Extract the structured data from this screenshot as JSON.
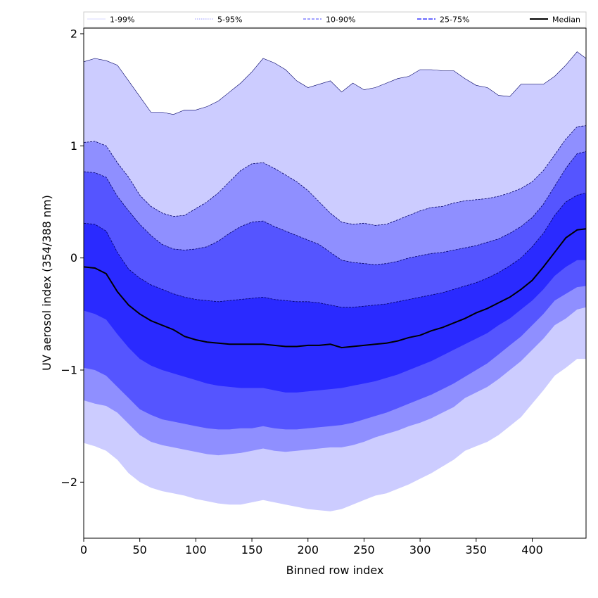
{
  "chart_data": {
    "type": "area",
    "title": "",
    "xlabel": "Binned row index",
    "ylabel": "UV aerosol index (354/388 nm)",
    "xlim": [
      0,
      448
    ],
    "ylim": [
      -2.5,
      2.05
    ],
    "xticks": [
      0,
      50,
      100,
      150,
      200,
      250,
      300,
      350,
      400
    ],
    "xtick_labels": [
      "0",
      "50",
      "100",
      "150",
      "200",
      "250",
      "300",
      "350",
      "400"
    ],
    "yticks": [
      -2,
      -1,
      0,
      1,
      2
    ],
    "ytick_labels": [
      "−2",
      "−1",
      "0",
      "1",
      "2"
    ],
    "grid": false,
    "legend_position": "top",
    "x": [
      0,
      10,
      20,
      30,
      40,
      50,
      60,
      70,
      80,
      90,
      100,
      110,
      120,
      130,
      140,
      150,
      160,
      170,
      180,
      190,
      200,
      210,
      220,
      230,
      240,
      250,
      260,
      270,
      280,
      290,
      300,
      310,
      320,
      330,
      340,
      350,
      360,
      370,
      380,
      390,
      400,
      410,
      420,
      430,
      440,
      448
    ],
    "bands": [
      {
        "name": "1-99%",
        "color": "#ccccff",
        "line_color": "#ccccff",
        "dash": "none",
        "lower": [
          -1.65,
          -1.68,
          -1.72,
          -1.8,
          -1.92,
          -2.0,
          -2.05,
          -2.08,
          -2.1,
          -2.12,
          -2.15,
          -2.17,
          -2.19,
          -2.2,
          -2.2,
          -2.18,
          -2.16,
          -2.18,
          -2.2,
          -2.22,
          -2.24,
          -2.25,
          -2.26,
          -2.24,
          -2.2,
          -2.16,
          -2.12,
          -2.1,
          -2.06,
          -2.02,
          -1.97,
          -1.92,
          -1.86,
          -1.8,
          -1.72,
          -1.68,
          -1.64,
          -1.58,
          -1.5,
          -1.42,
          -1.3,
          -1.18,
          -1.05,
          -0.98,
          -0.9,
          -0.9
        ],
        "upper": [
          1.75,
          1.78,
          1.76,
          1.72,
          1.58,
          1.44,
          1.3,
          1.3,
          1.28,
          1.32,
          1.32,
          1.35,
          1.4,
          1.48,
          1.56,
          1.66,
          1.78,
          1.74,
          1.68,
          1.58,
          1.52,
          1.55,
          1.58,
          1.48,
          1.56,
          1.5,
          1.52,
          1.56,
          1.6,
          1.62,
          1.68,
          1.68,
          1.67,
          1.67,
          1.6,
          1.54,
          1.52,
          1.45,
          1.44,
          1.55,
          1.55,
          1.55,
          1.62,
          1.72,
          1.84,
          1.78
        ]
      },
      {
        "name": "5-95%",
        "color": "#8f8fff",
        "line_color": "#8f8fff",
        "dash": "2,2",
        "lower": [
          -1.27,
          -1.3,
          -1.32,
          -1.38,
          -1.48,
          -1.58,
          -1.64,
          -1.67,
          -1.69,
          -1.71,
          -1.73,
          -1.75,
          -1.76,
          -1.75,
          -1.74,
          -1.72,
          -1.7,
          -1.72,
          -1.73,
          -1.72,
          -1.71,
          -1.7,
          -1.69,
          -1.69,
          -1.67,
          -1.64,
          -1.6,
          -1.57,
          -1.54,
          -1.5,
          -1.47,
          -1.43,
          -1.38,
          -1.33,
          -1.25,
          -1.2,
          -1.15,
          -1.08,
          -1.0,
          -0.92,
          -0.82,
          -0.72,
          -0.6,
          -0.54,
          -0.46,
          -0.44
        ]
      },
      {
        "name": "10-90%",
        "color": "#5555ff",
        "line_color": "#5555ff",
        "dash": "5,3",
        "lower": [
          -0.98,
          -1.0,
          -1.05,
          -1.15,
          -1.25,
          -1.35,
          -1.4,
          -1.44,
          -1.46,
          -1.48,
          -1.5,
          -1.52,
          -1.53,
          -1.53,
          -1.52,
          -1.52,
          -1.5,
          -1.52,
          -1.53,
          -1.53,
          -1.52,
          -1.51,
          -1.5,
          -1.49,
          -1.47,
          -1.44,
          -1.41,
          -1.38,
          -1.34,
          -1.3,
          -1.26,
          -1.22,
          -1.17,
          -1.12,
          -1.06,
          -1.0,
          -0.94,
          -0.86,
          -0.78,
          -0.7,
          -0.6,
          -0.5,
          -0.38,
          -0.32,
          -0.26,
          -0.25
        ]
      },
      {
        "name": "25-75%",
        "color": "#2a2aff",
        "line_color": "#2a2aff",
        "dash": "8,3",
        "lower": [
          -0.47,
          -0.5,
          -0.55,
          -0.68,
          -0.8,
          -0.9,
          -0.96,
          -1.0,
          -1.03,
          -1.06,
          -1.09,
          -1.12,
          -1.14,
          -1.15,
          -1.16,
          -1.16,
          -1.16,
          -1.18,
          -1.2,
          -1.2,
          -1.19,
          -1.18,
          -1.17,
          -1.16,
          -1.14,
          -1.12,
          -1.1,
          -1.07,
          -1.04,
          -1.0,
          -0.96,
          -0.92,
          -0.87,
          -0.82,
          -0.77,
          -0.72,
          -0.67,
          -0.6,
          -0.54,
          -0.46,
          -0.38,
          -0.28,
          -0.16,
          -0.08,
          -0.02,
          -0.02
        ]
      }
    ],
    "band_uppers_dark": [
      {
        "of": "5-95%",
        "values": [
          1.03,
          1.04,
          1.0,
          0.85,
          0.72,
          0.56,
          0.46,
          0.4,
          0.37,
          0.38,
          0.44,
          0.5,
          0.58,
          0.68,
          0.78,
          0.84,
          0.85,
          0.8,
          0.74,
          0.68,
          0.6,
          0.5,
          0.4,
          0.32,
          0.3,
          0.31,
          0.29,
          0.3,
          0.34,
          0.38,
          0.42,
          0.45,
          0.46,
          0.49,
          0.51,
          0.52,
          0.53,
          0.55,
          0.58,
          0.62,
          0.68,
          0.78,
          0.92,
          1.06,
          1.17,
          1.18
        ]
      },
      {
        "of": "10-90%",
        "values": [
          0.77,
          0.76,
          0.72,
          0.55,
          0.42,
          0.3,
          0.2,
          0.12,
          0.08,
          0.07,
          0.08,
          0.1,
          0.15,
          0.22,
          0.28,
          0.32,
          0.33,
          0.28,
          0.24,
          0.2,
          0.16,
          0.12,
          0.05,
          -0.02,
          -0.04,
          -0.05,
          -0.06,
          -0.05,
          -0.03,
          0.0,
          0.02,
          0.04,
          0.05,
          0.07,
          0.09,
          0.11,
          0.14,
          0.17,
          0.22,
          0.28,
          0.36,
          0.48,
          0.64,
          0.8,
          0.93,
          0.95
        ]
      },
      {
        "of": "25-75%",
        "values": [
          0.31,
          0.3,
          0.24,
          0.05,
          -0.1,
          -0.18,
          -0.24,
          -0.28,
          -0.32,
          -0.35,
          -0.37,
          -0.38,
          -0.39,
          -0.38,
          -0.37,
          -0.36,
          -0.35,
          -0.37,
          -0.38,
          -0.39,
          -0.39,
          -0.4,
          -0.42,
          -0.44,
          -0.44,
          -0.43,
          -0.42,
          -0.41,
          -0.39,
          -0.37,
          -0.35,
          -0.33,
          -0.31,
          -0.28,
          -0.25,
          -0.22,
          -0.18,
          -0.13,
          -0.07,
          0.0,
          0.1,
          0.22,
          0.38,
          0.5,
          0.56,
          0.58
        ]
      }
    ],
    "median": {
      "name": "Median",
      "color": "#000000",
      "values": [
        -0.08,
        -0.09,
        -0.14,
        -0.3,
        -0.42,
        -0.5,
        -0.56,
        -0.6,
        -0.64,
        -0.7,
        -0.73,
        -0.75,
        -0.76,
        -0.77,
        -0.77,
        -0.77,
        -0.77,
        -0.78,
        -0.79,
        -0.79,
        -0.78,
        -0.78,
        -0.77,
        -0.8,
        -0.79,
        -0.78,
        -0.77,
        -0.76,
        -0.74,
        -0.71,
        -0.69,
        -0.65,
        -0.62,
        -0.58,
        -0.54,
        -0.49,
        -0.45,
        -0.4,
        -0.35,
        -0.28,
        -0.2,
        -0.08,
        0.05,
        0.18,
        0.25,
        0.26
      ]
    },
    "legend": [
      "1-99%",
      "5-95%",
      "10-90%",
      "25-75%",
      "Median"
    ]
  }
}
